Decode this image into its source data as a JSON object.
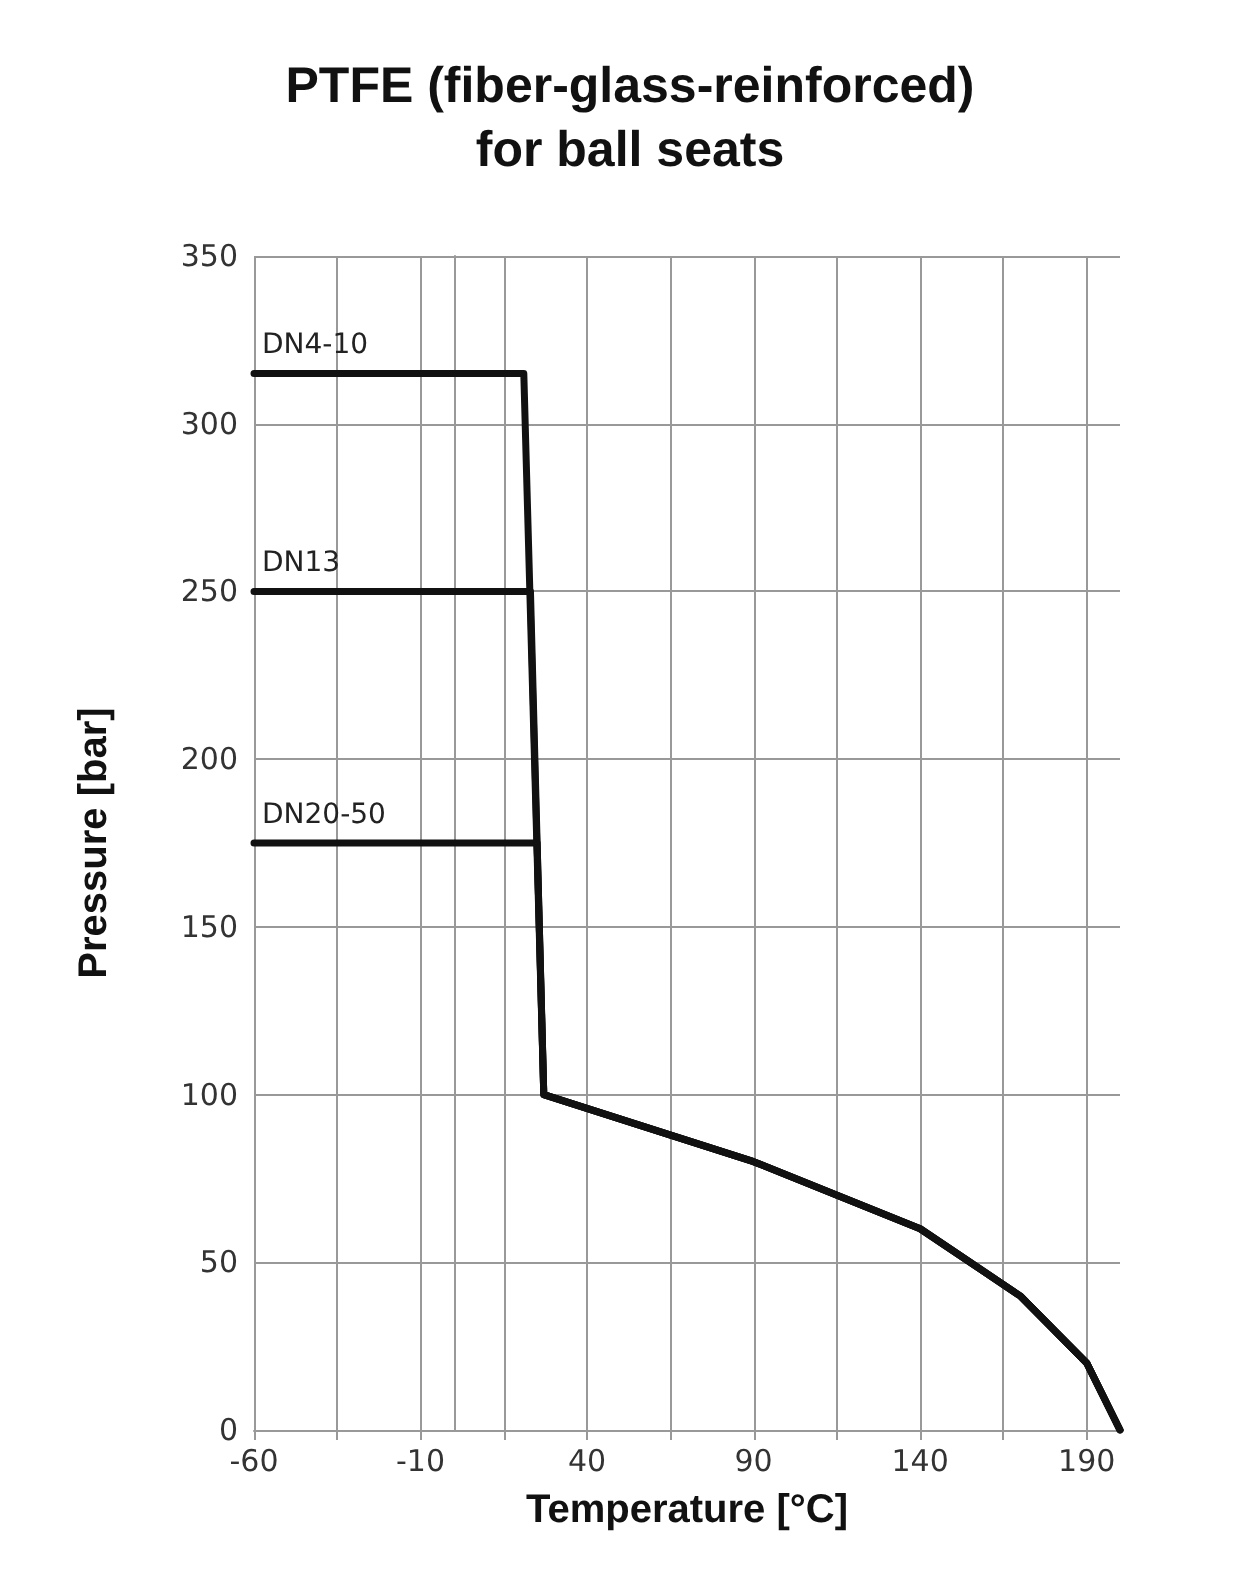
{
  "chart_data": {
    "type": "line",
    "title": "PTFE (fiber-glass-reinforced)\nfor ball seats",
    "xlabel": "Temperature [°C]",
    "ylabel": "Pressure [bar]",
    "series": [
      {
        "name": "DN4-10",
        "color": "#111111",
        "x": [
          -60,
          21,
          27,
          90,
          140,
          170,
          190,
          200
        ],
        "values": [
          315,
          315,
          100,
          80,
          60,
          40,
          20,
          0
        ]
      },
      {
        "name": "DN13",
        "color": "#111111",
        "x": [
          -60,
          23,
          27,
          90,
          140,
          170,
          190,
          200
        ],
        "values": [
          250,
          250,
          100,
          80,
          60,
          40,
          20,
          0
        ]
      },
      {
        "name": "DN20-50",
        "color": "#111111",
        "x": [
          -60,
          25,
          27,
          90,
          140,
          170,
          190,
          200
        ],
        "values": [
          175,
          175,
          100,
          80,
          60,
          40,
          20,
          0
        ]
      }
    ],
    "xlim": [
      -60,
      200
    ],
    "xticks": [
      -60,
      {
        "value": -35,
        "label": null
      },
      -10,
      {
        "value": 15,
        "label": null
      },
      40,
      {
        "value": 65,
        "label": null
      },
      90,
      {
        "value": 115,
        "label": null
      },
      140,
      {
        "value": 165,
        "label": null
      },
      190
    ],
    "ylim": [
      0,
      350
    ],
    "yticks": [
      0,
      50,
      100,
      150,
      200,
      250,
      300,
      350
    ],
    "grid": true,
    "legend": false,
    "marker": "none",
    "line_style": "solid"
  }
}
